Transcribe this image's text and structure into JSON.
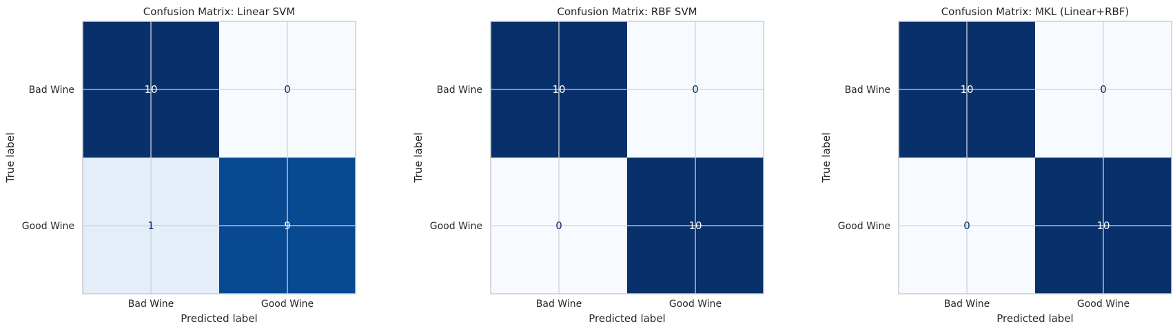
{
  "colors": {
    "cmap": "Blues",
    "text_on_dark": "#ffffff",
    "text_on_light": "#08306b",
    "grid": "#cfd3d9",
    "frame": "#c8ccd2"
  },
  "chart_data": [
    {
      "type": "heatmap",
      "title": "Confusion Matrix: Linear SVM",
      "xlabel": "Predicted label",
      "ylabel": "True label",
      "x_categories": [
        "Bad Wine",
        "Good Wine"
      ],
      "y_categories": [
        "Bad Wine",
        "Good Wine"
      ],
      "values": [
        [
          10,
          0
        ],
        [
          1,
          9
        ]
      ],
      "grid": true
    },
    {
      "type": "heatmap",
      "title": "Confusion Matrix: RBF SVM",
      "xlabel": "Predicted label",
      "ylabel": "True label",
      "x_categories": [
        "Bad Wine",
        "Good Wine"
      ],
      "y_categories": [
        "Bad Wine",
        "Good Wine"
      ],
      "values": [
        [
          10,
          0
        ],
        [
          0,
          10
        ]
      ],
      "grid": true
    },
    {
      "type": "heatmap",
      "title": "Confusion Matrix: MKL (Linear+RBF)",
      "xlabel": "Predicted label",
      "ylabel": "True label",
      "x_categories": [
        "Bad Wine",
        "Good Wine"
      ],
      "y_categories": [
        "Bad Wine",
        "Good Wine"
      ],
      "values": [
        [
          10,
          0
        ],
        [
          0,
          10
        ]
      ],
      "grid": true
    }
  ]
}
